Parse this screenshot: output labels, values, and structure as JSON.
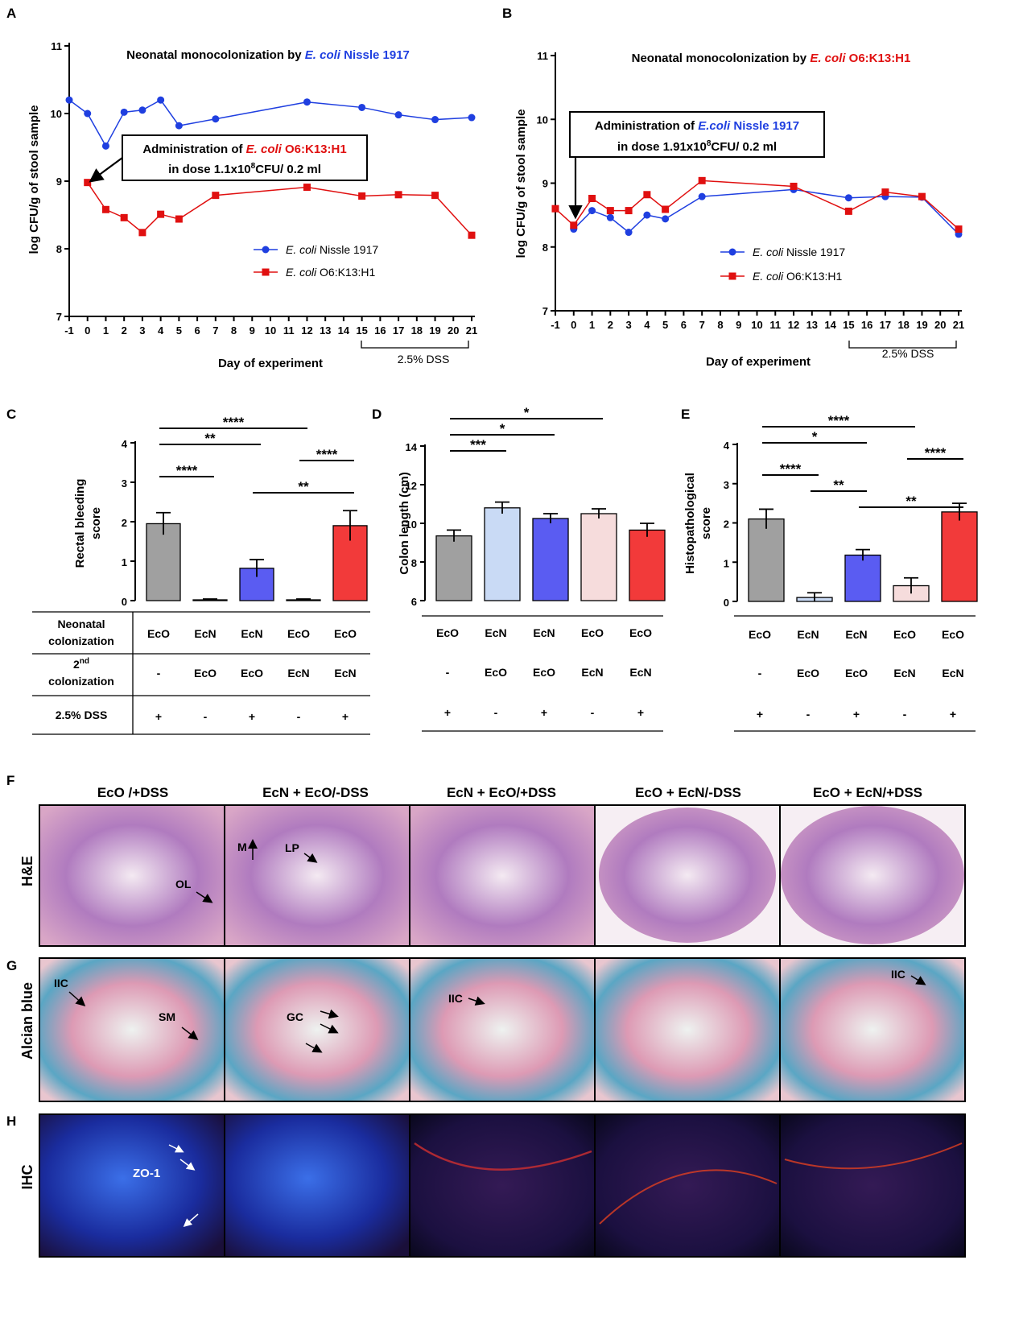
{
  "panel_labels": {
    "a": "A",
    "b": "B",
    "c": "C",
    "d": "D",
    "e": "E",
    "f": "F",
    "g": "G",
    "h": "H"
  },
  "chart_data": [
    {
      "id": "A",
      "type": "line",
      "title_prefix": "Neonatal monocolonization by ",
      "title_species": "E. coli",
      "title_strain": " Nissle 1917",
      "title_color": "#1f3fe0",
      "ylabel": "log CFU/g of stool sample",
      "xlabel": "Day of experiment",
      "ylim": [
        7,
        11
      ],
      "yticks": [
        "7",
        "8",
        "9",
        "10",
        "11"
      ],
      "xticks": [
        "-1",
        "0",
        "1",
        "2",
        "3",
        "4",
        "5",
        "6",
        "7",
        "8",
        "9",
        "10",
        "11",
        "12",
        "13",
        "14",
        "15",
        "16",
        "17",
        "18",
        "19",
        "20",
        "21"
      ],
      "dss_label": "2.5% DSS",
      "annotation": {
        "line1_prefix": "Administration of ",
        "line1_species": "E. coli",
        "line1_strain": " O6:K13:H1",
        "line1_color": "#e01010",
        "line2_prefix": "in dose 1.1x10",
        "line2_sup": "8",
        "line2_suffix": "CFU/ 0.2 ml"
      },
      "legend": [
        {
          "species": "E. coli",
          "name": " Nissle 1917",
          "color": "#1f3fe0",
          "marker": "circle"
        },
        {
          "species": "E. coli",
          "name": " O6:K13:H1",
          "color": "#e01010",
          "marker": "square"
        }
      ],
      "series": [
        {
          "name": "E. coli Nissle 1917",
          "color": "#1f3fe0",
          "marker": "circle",
          "x": [
            -1,
            0,
            1,
            2,
            3,
            4,
            5,
            7,
            12,
            15,
            17,
            19,
            21
          ],
          "y": [
            10.2,
            10.0,
            9.52,
            10.02,
            10.05,
            10.2,
            9.82,
            9.92,
            10.17,
            10.09,
            9.98,
            9.91,
            9.94
          ]
        },
        {
          "name": "E. coli O6:K13:H1",
          "color": "#e01010",
          "marker": "square",
          "x": [
            0,
            1,
            2,
            3,
            4,
            5,
            7,
            12,
            15,
            17,
            19,
            21
          ],
          "y": [
            8.98,
            8.58,
            8.46,
            8.24,
            8.51,
            8.44,
            8.79,
            8.91,
            8.78,
            8.8,
            8.79,
            8.2
          ]
        }
      ]
    },
    {
      "id": "B",
      "type": "line",
      "title_prefix": "Neonatal monocolonization by ",
      "title_species": "E. coli",
      "title_strain": " O6:K13:H1",
      "title_color": "#e01010",
      "ylabel": "log CFU/g of stool sample",
      "xlabel": "Day of experiment",
      "ylim": [
        7,
        11
      ],
      "yticks": [
        "7",
        "8",
        "9",
        "10",
        "11"
      ],
      "xticks": [
        "-1",
        "0",
        "1",
        "2",
        "3",
        "4",
        "5",
        "6",
        "7",
        "8",
        "9",
        "10",
        "11",
        "12",
        "13",
        "14",
        "15",
        "16",
        "17",
        "18",
        "19",
        "20",
        "21"
      ],
      "dss_label": "2.5% DSS",
      "annotation": {
        "line1_prefix": "Administration of ",
        "line1_species": "E.coli",
        "line1_strain": " Nissle 1917",
        "line1_color": "#1f3fe0",
        "line2_prefix": "in dose 1.91x10",
        "line2_sup": "8",
        "line2_suffix": "CFU/ 0.2 ml"
      },
      "legend": [
        {
          "species": "E. coli",
          "name": " Nissle 1917",
          "color": "#1f3fe0",
          "marker": "circle"
        },
        {
          "species": "E. coli",
          "name": " O6:K13:H1",
          "color": "#e01010",
          "marker": "square"
        }
      ],
      "series": [
        {
          "name": "E. coli Nissle 1917",
          "color": "#1f3fe0",
          "marker": "circle",
          "x": [
            0,
            1,
            2,
            3,
            4,
            5,
            7,
            12,
            15,
            17,
            19,
            21
          ],
          "y": [
            8.28,
            8.57,
            8.46,
            8.23,
            8.5,
            8.44,
            8.79,
            8.9,
            8.77,
            8.79,
            8.78,
            8.2
          ]
        },
        {
          "name": "E. coli O6:K13:H1",
          "color": "#e01010",
          "marker": "square",
          "x": [
            -1,
            0,
            1,
            2,
            3,
            4,
            5,
            7,
            12,
            15,
            17,
            19,
            21
          ],
          "y": [
            8.6,
            8.34,
            8.76,
            8.57,
            8.57,
            8.82,
            8.59,
            9.04,
            8.95,
            8.56,
            8.86,
            8.79,
            8.28
          ]
        }
      ]
    },
    {
      "id": "C",
      "type": "bar",
      "ylabel_line1": "Rectal bleeding",
      "ylabel_line2": "score",
      "ylim": [
        0,
        4
      ],
      "yticks": [
        "0",
        "1",
        "2",
        "3",
        "4"
      ],
      "values": [
        1.95,
        0.02,
        0.82,
        0.02,
        1.9
      ],
      "errors": [
        0.28,
        0.02,
        0.22,
        0.02,
        0.38
      ],
      "colors": [
        "#a0a0a0",
        "#c9daf5",
        "#5a5cf2",
        "#f6dcdc",
        "#f23a3a"
      ],
      "significance": [
        {
          "from": 0,
          "to": 3,
          "label": "****"
        },
        {
          "from": 0,
          "to": 2,
          "label": "**"
        },
        {
          "from": 3,
          "to": 4,
          "label": "****"
        },
        {
          "from": 0,
          "to": 1,
          "label": "****"
        },
        {
          "from": 2,
          "to": 4,
          "label": "**"
        }
      ]
    },
    {
      "id": "D",
      "type": "bar",
      "ylabel": "Colon length (cm)",
      "ylim": [
        6,
        14
      ],
      "yticks": [
        "6",
        "8",
        "10",
        "12",
        "14"
      ],
      "values": [
        9.35,
        10.8,
        10.25,
        10.5,
        9.65
      ],
      "errors": [
        0.3,
        0.3,
        0.25,
        0.25,
        0.35
      ],
      "colors": [
        "#a0a0a0",
        "#c9daf5",
        "#5a5cf2",
        "#f6dcdc",
        "#f23a3a"
      ],
      "significance": [
        {
          "from": 0,
          "to": 3,
          "label": "*"
        },
        {
          "from": 0,
          "to": 2,
          "label": "*"
        },
        {
          "from": 0,
          "to": 1,
          "label": "***"
        }
      ]
    },
    {
      "id": "E",
      "type": "bar",
      "ylabel_line1": "Histopathological",
      "ylabel_line2": "score",
      "ylim": [
        0,
        4
      ],
      "yticks": [
        "0",
        "1",
        "2",
        "3",
        "4"
      ],
      "values": [
        2.1,
        0.1,
        1.18,
        0.4,
        2.28
      ],
      "errors": [
        0.25,
        0.12,
        0.14,
        0.2,
        0.22
      ],
      "colors": [
        "#a0a0a0",
        "#c9daf5",
        "#5a5cf2",
        "#f6dcdc",
        "#f23a3a"
      ],
      "significance": [
        {
          "from": 0,
          "to": 3,
          "label": "****"
        },
        {
          "from": 0,
          "to": 2,
          "label": "*"
        },
        {
          "from": 3,
          "to": 4,
          "label": "****"
        },
        {
          "from": 0,
          "to": 1,
          "label": "****"
        },
        {
          "from": 1,
          "to": 2,
          "label": "**"
        },
        {
          "from": 2,
          "to": 4,
          "label": "**"
        }
      ]
    }
  ],
  "table": {
    "row1_l1": "Neonatal",
    "row1_l2": "colonization",
    "row2_sup": "nd",
    "row2_l1_num": "2",
    "row2_l2": "colonization",
    "row3": "2.5% DSS",
    "neonatal": [
      "EcO",
      "EcN",
      "EcN",
      "EcO",
      "EcO"
    ],
    "second": [
      "-",
      "EcO",
      "EcO",
      "EcN",
      "EcN"
    ],
    "dss": [
      "+",
      "-",
      "+",
      "-",
      "+"
    ]
  },
  "histology": {
    "columns": [
      "EcO /+DSS",
      "EcN + EcO/-DSS",
      "EcN + EcO/+DSS",
      "EcO + EcN/-DSS",
      "EcO + EcN/+DSS"
    ],
    "rows": [
      "H&E",
      "Alcian blue",
      "IHC"
    ],
    "annotations": {
      "ol": "OL",
      "m": "M",
      "lp": "LP",
      "iic1": "IIC",
      "sm": "SM",
      "gc": "GC",
      "iic2": "IIC",
      "iic3": "IIC",
      "zo1": "ZO-1"
    }
  }
}
